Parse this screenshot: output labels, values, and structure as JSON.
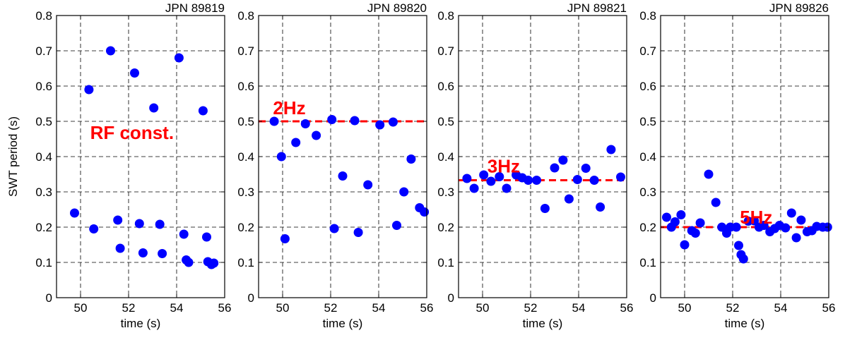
{
  "chart_data": [
    {
      "type": "scatter",
      "title": "JPN 89819",
      "xlabel": "time (s)",
      "ylabel": "SWT period (s)",
      "xlim": [
        49,
        56
      ],
      "ylim": [
        0,
        0.8
      ],
      "xticks": [
        50,
        52,
        54,
        56
      ],
      "yticks": [
        0,
        0.1,
        0.2,
        0.3,
        0.4,
        0.5,
        0.6,
        0.7,
        0.8
      ],
      "grid": true,
      "annotation": {
        "text": "RF const.",
        "x": 50.4,
        "y": 0.45
      },
      "reference_line": null,
      "series": [
        {
          "color": "#0000ff",
          "points": [
            [
              49.75,
              0.24
            ],
            [
              50.35,
              0.59
            ],
            [
              50.55,
              0.195
            ],
            [
              51.25,
              0.7
            ],
            [
              51.55,
              0.22
            ],
            [
              51.65,
              0.14
            ],
            [
              52.25,
              0.637
            ],
            [
              52.45,
              0.21
            ],
            [
              52.6,
              0.127
            ],
            [
              53.05,
              0.538
            ],
            [
              53.3,
              0.208
            ],
            [
              53.4,
              0.125
            ],
            [
              54.1,
              0.68
            ],
            [
              54.3,
              0.18
            ],
            [
              54.4,
              0.107
            ],
            [
              54.5,
              0.1
            ],
            [
              55.1,
              0.53
            ],
            [
              55.25,
              0.172
            ],
            [
              55.3,
              0.102
            ],
            [
              55.45,
              0.094
            ],
            [
              55.55,
              0.098
            ]
          ]
        }
      ]
    },
    {
      "type": "scatter",
      "title": "JPN 89820",
      "xlabel": "time (s)",
      "ylabel": "",
      "xlim": [
        49,
        56
      ],
      "ylim": [
        0,
        0.8
      ],
      "xticks": [
        50,
        52,
        54,
        56
      ],
      "yticks": [
        0,
        0.1,
        0.2,
        0.3,
        0.4,
        0.5,
        0.6,
        0.7,
        0.8
      ],
      "grid": true,
      "annotation": {
        "text": "2Hz",
        "x": 49.6,
        "y": 0.52
      },
      "reference_line": {
        "y": 0.5,
        "color": "#ff0000",
        "style": "dashed"
      },
      "series": [
        {
          "color": "#0000ff",
          "points": [
            [
              49.65,
              0.5
            ],
            [
              49.95,
              0.4
            ],
            [
              50.1,
              0.167
            ],
            [
              50.55,
              0.44
            ],
            [
              50.95,
              0.493
            ],
            [
              51.4,
              0.46
            ],
            [
              52.05,
              0.505
            ],
            [
              52.15,
              0.196
            ],
            [
              52.5,
              0.345
            ],
            [
              53.0,
              0.502
            ],
            [
              53.15,
              0.185
            ],
            [
              53.55,
              0.32
            ],
            [
              54.05,
              0.49
            ],
            [
              54.6,
              0.498
            ],
            [
              54.75,
              0.205
            ],
            [
              55.05,
              0.3
            ],
            [
              55.35,
              0.393
            ],
            [
              55.7,
              0.255
            ],
            [
              55.9,
              0.243
            ]
          ]
        }
      ]
    },
    {
      "type": "scatter",
      "title": "JPN 89821",
      "xlabel": "time (s)",
      "ylabel": "",
      "xlim": [
        49,
        56
      ],
      "ylim": [
        0,
        0.8
      ],
      "xticks": [
        50,
        52,
        54,
        56
      ],
      "yticks": [
        0,
        0.1,
        0.2,
        0.3,
        0.4,
        0.5,
        0.6,
        0.7,
        0.8
      ],
      "grid": true,
      "annotation": {
        "text": "3Hz",
        "x": 50.2,
        "y": 0.355
      },
      "reference_line": {
        "y": 0.333,
        "color": "#ff0000",
        "style": "dashed"
      },
      "series": [
        {
          "color": "#0000ff",
          "points": [
            [
              49.35,
              0.338
            ],
            [
              49.65,
              0.31
            ],
            [
              50.05,
              0.348
            ],
            [
              50.35,
              0.33
            ],
            [
              50.7,
              0.343
            ],
            [
              51.0,
              0.31
            ],
            [
              51.4,
              0.348
            ],
            [
              51.65,
              0.34
            ],
            [
              51.9,
              0.333
            ],
            [
              52.25,
              0.333
            ],
            [
              52.6,
              0.253
            ],
            [
              53.0,
              0.368
            ],
            [
              53.35,
              0.39
            ],
            [
              53.6,
              0.28
            ],
            [
              53.95,
              0.335
            ],
            [
              54.3,
              0.367
            ],
            [
              54.65,
              0.333
            ],
            [
              54.9,
              0.257
            ],
            [
              55.35,
              0.42
            ],
            [
              55.75,
              0.342
            ]
          ]
        }
      ]
    },
    {
      "type": "scatter",
      "title": "JPN 89826",
      "xlabel": "time (s)",
      "ylabel": "",
      "xlim": [
        49,
        56
      ],
      "ylim": [
        0,
        0.8
      ],
      "xticks": [
        50,
        52,
        54,
        56
      ],
      "yticks": [
        0,
        0.1,
        0.2,
        0.3,
        0.4,
        0.5,
        0.6,
        0.7,
        0.8
      ],
      "grid": true,
      "annotation": {
        "text": "5Hz",
        "x": 52.3,
        "y": 0.21
      },
      "reference_line": {
        "y": 0.2,
        "color": "#ff0000",
        "style": "dashed"
      },
      "series": [
        {
          "color": "#0000ff",
          "points": [
            [
              49.25,
              0.228
            ],
            [
              49.45,
              0.2
            ],
            [
              49.6,
              0.215
            ],
            [
              49.85,
              0.235
            ],
            [
              50.0,
              0.15
            ],
            [
              50.3,
              0.19
            ],
            [
              50.45,
              0.183
            ],
            [
              50.65,
              0.212
            ],
            [
              51.0,
              0.35
            ],
            [
              51.3,
              0.27
            ],
            [
              51.55,
              0.2
            ],
            [
              51.75,
              0.183
            ],
            [
              51.9,
              0.2
            ],
            [
              52.15,
              0.2
            ],
            [
              52.25,
              0.148
            ],
            [
              52.35,
              0.122
            ],
            [
              52.45,
              0.11
            ],
            [
              52.65,
              0.217
            ],
            [
              52.9,
              0.218
            ],
            [
              53.1,
              0.2
            ],
            [
              53.3,
              0.205
            ],
            [
              53.55,
              0.187
            ],
            [
              53.75,
              0.196
            ],
            [
              53.95,
              0.205
            ],
            [
              54.2,
              0.198
            ],
            [
              54.45,
              0.24
            ],
            [
              54.65,
              0.17
            ],
            [
              54.85,
              0.22
            ],
            [
              55.1,
              0.187
            ],
            [
              55.3,
              0.19
            ],
            [
              55.5,
              0.202
            ],
            [
              55.75,
              0.2
            ],
            [
              55.95,
              0.2
            ]
          ]
        }
      ]
    }
  ]
}
